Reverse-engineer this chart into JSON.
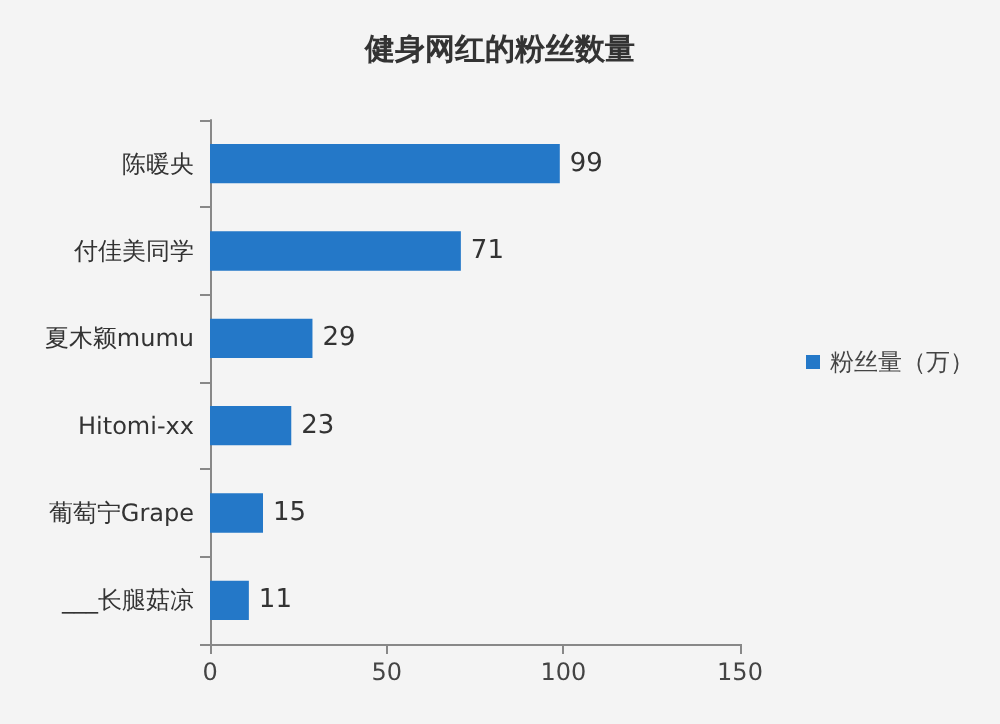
{
  "chart_data": {
    "type": "bar",
    "orientation": "horizontal",
    "title": "健身网红的粉丝数量",
    "categories": [
      "陈暖央",
      "付佳美同学",
      "夏木颖mumu",
      "Hitomi-xx",
      "葡萄宁Grape",
      "___长腿菇凉"
    ],
    "series": [
      {
        "name": "粉丝量（万）",
        "color": "#2478c8",
        "values": [
          99,
          71,
          29,
          23,
          15,
          11
        ]
      }
    ],
    "xlim": [
      0,
      150
    ],
    "xticks": [
      0,
      50,
      100,
      150
    ],
    "data_labels": true,
    "grid": false,
    "legend": "right"
  }
}
